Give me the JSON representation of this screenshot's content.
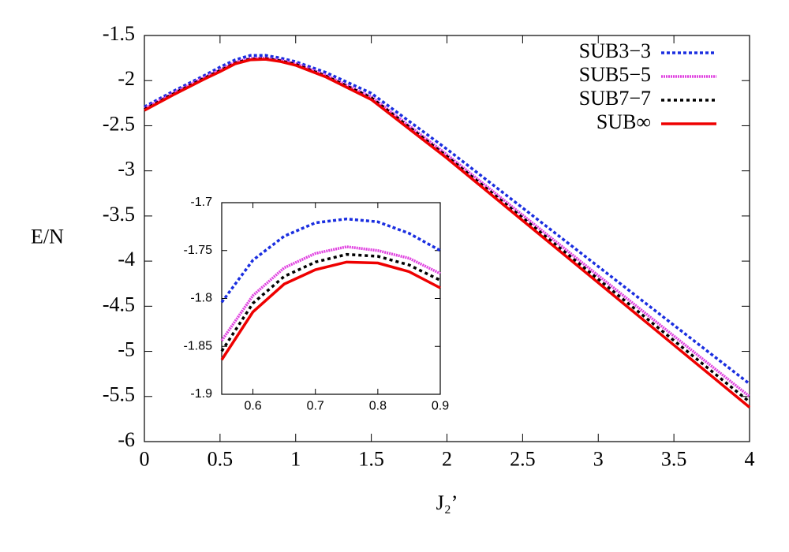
{
  "chart_data": [
    {
      "type": "line",
      "y_label": "E/N",
      "x_label": "J₂’",
      "x": [
        0,
        0.2,
        0.4,
        0.5,
        0.6,
        0.7,
        0.8,
        0.9,
        1,
        1.2,
        1.5,
        2,
        2.5,
        3,
        3.5,
        4
      ],
      "series": [
        {
          "name": "SUB3−3",
          "color": "#1a2ee0",
          "dash": "4 3",
          "values": [
            -2.29,
            -2.11,
            -1.94,
            -1.85,
            -1.77,
            -1.721,
            -1.72,
            -1.75,
            -1.79,
            -1.91,
            -2.14,
            -2.76,
            -3.41,
            -4.06,
            -4.71,
            -5.36
          ]
        },
        {
          "name": "SUB5−5",
          "color": "#e040e0",
          "dash": "2 1",
          "values": [
            -2.31,
            -2.13,
            -1.96,
            -1.88,
            -1.797,
            -1.753,
            -1.75,
            -1.774,
            -1.81,
            -1.94,
            -2.18,
            -2.82,
            -3.49,
            -4.16,
            -4.83,
            -5.5
          ]
        },
        {
          "name": "SUB7−7",
          "color": "#000000",
          "dash": "4 4",
          "values": [
            -2.32,
            -2.14,
            -1.97,
            -1.89,
            -1.805,
            -1.762,
            -1.756,
            -1.781,
            -1.82,
            -1.95,
            -2.19,
            -2.84,
            -3.52,
            -4.2,
            -4.88,
            -5.56
          ]
        },
        {
          "name": "SUB∞",
          "color": "#ee0000",
          "dash": "none",
          "values": [
            -2.33,
            -2.15,
            -1.98,
            -1.9,
            -1.814,
            -1.77,
            -1.763,
            -1.789,
            -1.83,
            -1.96,
            -2.21,
            -2.86,
            -3.55,
            -4.24,
            -4.93,
            -5.62
          ]
        }
      ],
      "xlim": [
        0,
        4
      ],
      "xticks": [
        0,
        0.5,
        1,
        1.5,
        2,
        2.5,
        3,
        3.5,
        4
      ],
      "ylim": [
        -6,
        -1.5
      ],
      "yticks": [
        -6,
        -5.5,
        -5,
        -4.5,
        -4,
        -3.5,
        -3,
        -2.5,
        -2,
        -1.5
      ],
      "legend": "top-right"
    },
    {
      "type": "line",
      "x": [
        0.55,
        0.6,
        0.65,
        0.7,
        0.75,
        0.8,
        0.85,
        0.9
      ],
      "series": [
        {
          "color": "#1a2ee0",
          "dash": "4 3",
          "values": [
            -1.804,
            -1.76,
            -1.735,
            -1.721,
            -1.717,
            -1.72,
            -1.732,
            -1.75
          ]
        },
        {
          "color": "#e040e0",
          "dash": "2 1",
          "values": [
            -1.844,
            -1.797,
            -1.768,
            -1.753,
            -1.746,
            -1.75,
            -1.758,
            -1.774
          ]
        },
        {
          "color": "#000000",
          "dash": "4 4",
          "values": [
            -1.855,
            -1.805,
            -1.777,
            -1.762,
            -1.754,
            -1.756,
            -1.765,
            -1.781
          ]
        },
        {
          "color": "#ee0000",
          "dash": "none",
          "values": [
            -1.864,
            -1.814,
            -1.785,
            -1.77,
            -1.762,
            -1.763,
            -1.772,
            -1.789
          ]
        }
      ],
      "xlim": [
        0.55,
        0.9
      ],
      "xticks": [
        0.6,
        0.7,
        0.8,
        0.9
      ],
      "ylim": [
        -1.9,
        -1.7
      ],
      "yticks": [
        -1.9,
        -1.85,
        -1.8,
        -1.75,
        -1.7
      ]
    }
  ]
}
